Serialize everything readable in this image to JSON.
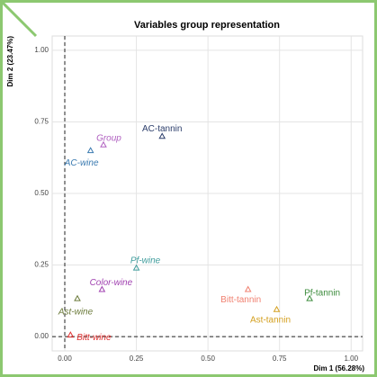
{
  "chart_data": {
    "type": "scatter",
    "title": "Variables group representation",
    "x_label": "Dim 1 (56.28%)",
    "y_label": "Dim 2 (23.47%)",
    "xlim": [
      -0.044,
      1.04
    ],
    "ylim": [
      -0.05,
      1.05
    ],
    "xticks": [
      {
        "value": 0,
        "label": "0.00"
      },
      0.25,
      {
        "value": 0.5,
        "label": "0.50"
      },
      0.75,
      {
        "value": 1,
        "label": "1.00"
      }
    ],
    "yticks": [
      {
        "value": 0,
        "label": "0.00"
      },
      0.25,
      {
        "value": 0.5,
        "label": "0.50"
      },
      0.75,
      {
        "value": 1,
        "label": "1.00"
      }
    ],
    "grid": true,
    "points": [
      {
        "label": "AC-tannin",
        "color": "#2c3e6b",
        "x": 0.34,
        "y": 0.7
      },
      {
        "label": "Group",
        "color": "#b060c0",
        "x": 0.135,
        "y": 0.67
      },
      {
        "label": "AC-wine",
        "color": "#3a7ab0",
        "x": 0.09,
        "y": 0.65
      },
      {
        "label": "Pf-wine",
        "color": "#3f9c9c",
        "x": 0.25,
        "y": 0.24
      },
      {
        "label": "Color-wine",
        "color": "#a040b0",
        "x": 0.13,
        "y": 0.165
      },
      {
        "label": "Ast-wine",
        "color": "#6b7a3a",
        "x": 0.044,
        "y": 0.133
      },
      {
        "label": "Bitt-wine",
        "color": "#e03030",
        "x": 0.02,
        "y": 0.006
      },
      {
        "label": "Bitt-tannin",
        "color": "#f08070",
        "x": 0.64,
        "y": 0.165
      },
      {
        "label": "Ast-tannin",
        "color": "#d4a020",
        "x": 0.74,
        "y": 0.095
      },
      {
        "label": "Pf-tannin",
        "color": "#3d8c3d",
        "x": 0.855,
        "y": 0.133
      }
    ]
  }
}
